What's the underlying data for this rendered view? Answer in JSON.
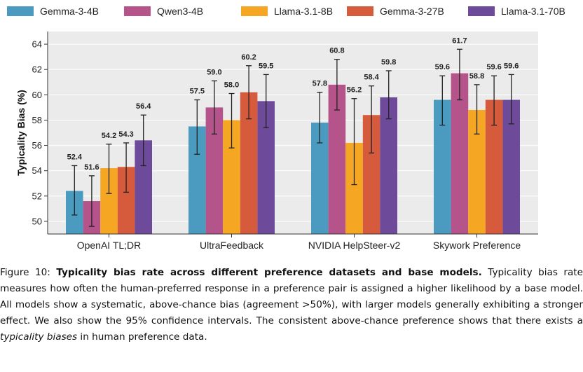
{
  "chart_data": {
    "type": "bar",
    "title": "",
    "xlabel": "",
    "ylabel": "Typicality Bias (%)",
    "ylim": [
      49,
      65
    ],
    "yticks": [
      50,
      52,
      54,
      56,
      58,
      60,
      62,
      64
    ],
    "grid": true,
    "legend_position": "top",
    "categories": [
      "OpenAI TL;DR",
      "UltraFeedback",
      "NVIDIA HelpSteer-v2",
      "Skywork Preference"
    ],
    "series": [
      {
        "name": "Gemma-3-4B",
        "color": "#4a9bbf",
        "values": [
          52.4,
          57.5,
          57.8,
          59.6
        ],
        "labels": [
          "52.4",
          "57.5",
          "57.8",
          "59.6"
        ],
        "err_low": [
          50.5,
          55.3,
          56.2,
          57.6
        ],
        "err_high": [
          54.4,
          59.6,
          60.2,
          61.5
        ]
      },
      {
        "name": "Qwen3-4B",
        "color": "#b5548a",
        "values": [
          51.6,
          59.0,
          60.8,
          61.7
        ],
        "labels": [
          "51.6",
          "59.0",
          "60.8",
          "61.7"
        ],
        "err_low": [
          49.6,
          56.9,
          58.8,
          59.6
        ],
        "err_high": [
          53.6,
          61.1,
          62.8,
          63.6
        ]
      },
      {
        "name": "Llama-3.1-8B",
        "color": "#f5a623",
        "values": [
          54.2,
          58.0,
          56.2,
          58.8
        ],
        "labels": [
          "54.2",
          "58.0",
          "56.2",
          "58.8"
        ],
        "err_low": [
          52.2,
          55.8,
          52.9,
          56.9
        ],
        "err_high": [
          56.1,
          60.1,
          59.7,
          60.8
        ]
      },
      {
        "name": "Gemma-3-27B",
        "color": "#d65a3c",
        "values": [
          54.3,
          60.2,
          58.4,
          59.6
        ],
        "labels": [
          "54.3",
          "60.2",
          "58.4",
          "59.6"
        ],
        "err_low": [
          52.3,
          58.1,
          55.4,
          57.6
        ],
        "err_high": [
          56.2,
          62.3,
          60.7,
          61.5
        ]
      },
      {
        "name": "Llama-3.1-70B",
        "color": "#6e4a9a",
        "values": [
          56.4,
          59.5,
          59.8,
          59.6
        ],
        "labels": [
          "56.4",
          "59.5",
          "59.8",
          "59.6"
        ],
        "err_low": [
          54.4,
          57.4,
          58.1,
          57.7
        ],
        "err_high": [
          58.4,
          61.6,
          61.9,
          61.6
        ]
      }
    ]
  },
  "caption": {
    "figure_label": "Figure 10: ",
    "bold_title": "Typicality bias rate across different preference datasets and base models.",
    "body": " Typicality bias rate measures how often the human-preferred response in a preference pair is assigned a higher likelihood by a base model. All models show a systematic, above-chance bias (agreement >50%), with larger models generally exhibiting a stronger effect. We also show the 95% confidence intervals. The consistent above-chance preference shows that there exists a ",
    "italic_term": "typicality biases",
    "tail": " in human preference data."
  }
}
